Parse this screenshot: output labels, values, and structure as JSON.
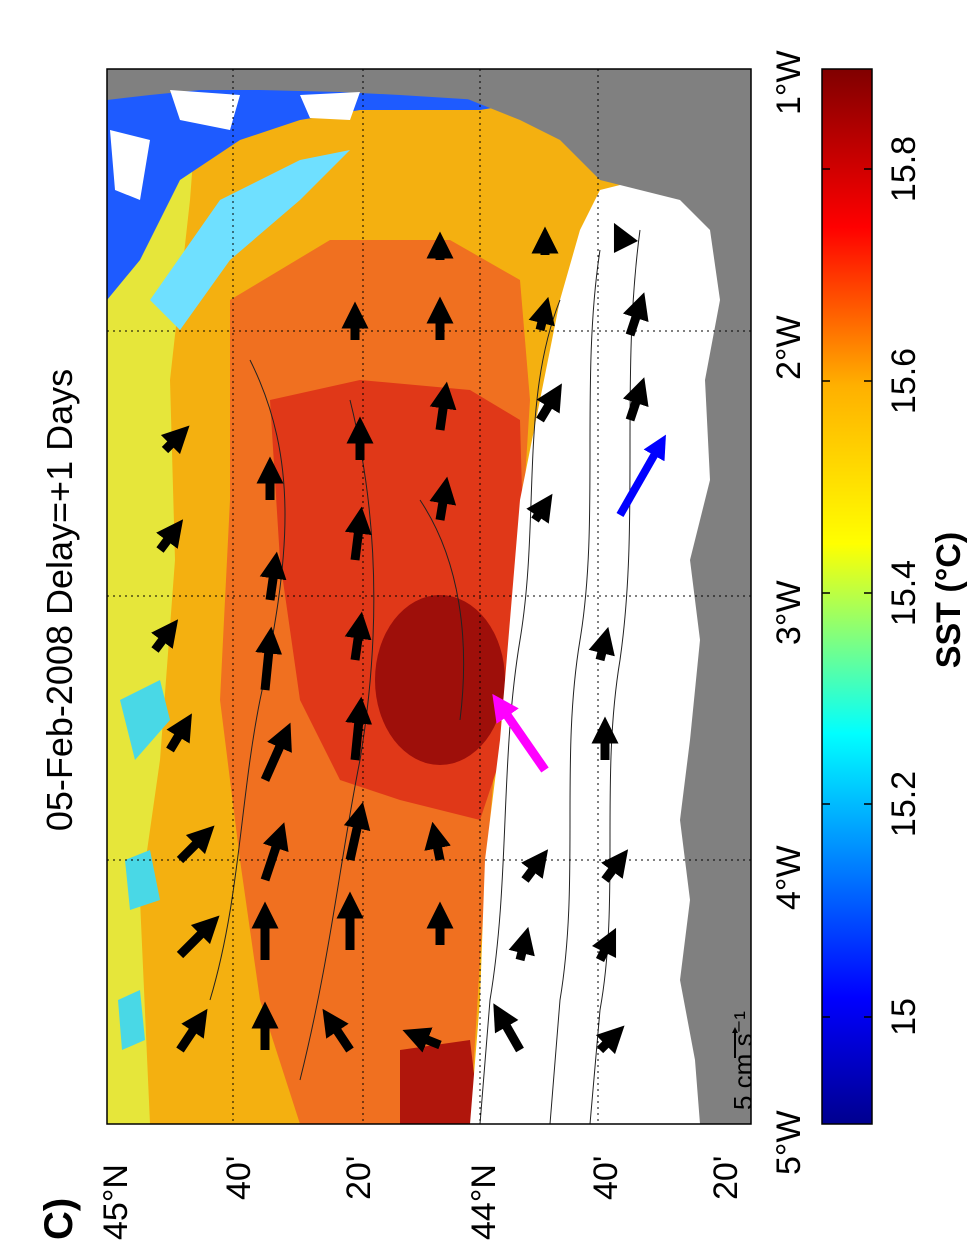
{
  "panel_label": "C)",
  "title": "05-Feb-2008 Delay=+1 Days",
  "scale_arrow_label": "5 cm s⁻¹",
  "longitude_ticks": [
    "5°W",
    "4°W",
    "3°W",
    "2°W",
    "1°W"
  ],
  "latitude_ticks": [
    "45°N",
    "40'",
    "20'",
    "44°N",
    "40'",
    "20'"
  ],
  "colorbar": {
    "label": "SST (°C)",
    "ticks": [
      "15",
      "15.2",
      "15.4",
      "15.6",
      "15.8"
    ],
    "range": [
      14.9,
      15.9
    ],
    "colormap": [
      "#00008f",
      "#0000ff",
      "#00ffff",
      "#ffff00",
      "#ff0000",
      "#800000"
    ]
  },
  "colors": {
    "land": "#808080",
    "no_data": "#ffffff",
    "highlight_arrow": "#ff00ff",
    "secondary_arrow": "#0000ff",
    "current_arrow": "#000000"
  }
}
